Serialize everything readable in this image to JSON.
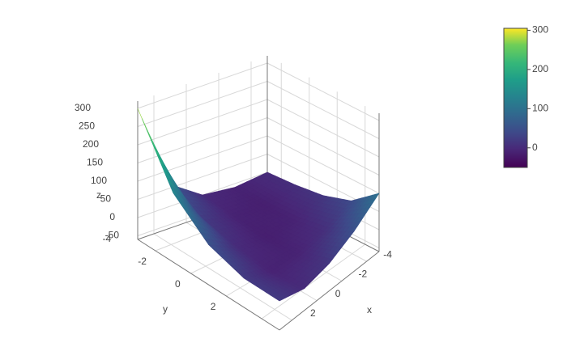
{
  "chart_data": {
    "type": "surface",
    "x": [
      -5,
      -3,
      -1,
      1,
      3
    ],
    "y": [
      -5,
      -3,
      -1,
      1,
      3
    ],
    "z": [
      [
        0,
        -10,
        0,
        60,
        300
      ],
      [
        5,
        -15,
        -10,
        20,
        130
      ],
      [
        15,
        -10,
        -15,
        0,
        50
      ],
      [
        40,
        5,
        -10,
        -10,
        20
      ],
      [
        100,
        50,
        15,
        0,
        20
      ]
    ],
    "xlim": [
      -5,
      3
    ],
    "ylim": [
      -5,
      3
    ],
    "zlim": [
      -60,
      320
    ],
    "xticks": [
      -4,
      -2,
      0,
      2
    ],
    "yticks": [
      -4,
      -2,
      0,
      2
    ],
    "zticks": [
      -50,
      0,
      50,
      100,
      150,
      200,
      250,
      300
    ],
    "xlabel": "x",
    "ylabel": "y",
    "zlabel": "z",
    "colorscale": "Viridis",
    "clim": [
      -50,
      305
    ],
    "colorbar_ticks": [
      0,
      100,
      200,
      300
    ]
  }
}
